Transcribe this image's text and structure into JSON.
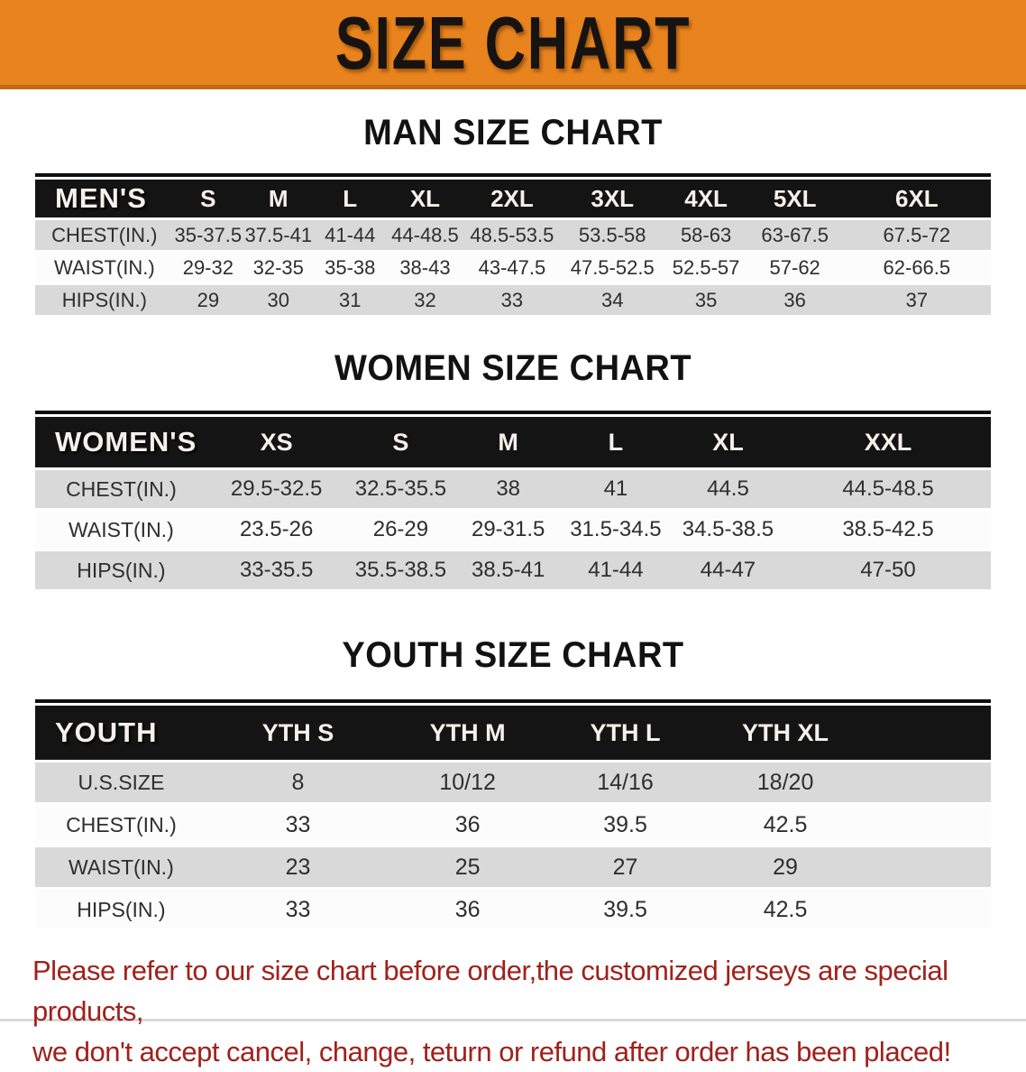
{
  "banner": {
    "title": "SIZE CHART",
    "bg_color": "#E8831E",
    "text_color": "#171310"
  },
  "tables": [
    {
      "heading": "MAN SIZE CHART",
      "corner_label": "MEN'S",
      "sizes": [
        "S",
        "M",
        "L",
        "XL",
        "2XL",
        "3XL",
        "4XL",
        "5XL",
        "6XL"
      ],
      "rows": [
        {
          "label": "CHEST(IN.)",
          "values": [
            "35-37.5",
            "37.5-41",
            "41-44",
            "44-48.5",
            "48.5-53.5",
            "53.5-58",
            "58-63",
            "63-67.5",
            "67.5-72"
          ]
        },
        {
          "label": "WAIST(IN.)",
          "values": [
            "29-32",
            "32-35",
            "35-38",
            "38-43",
            "43-47.5",
            "47.5-52.5",
            "52.5-57",
            "57-62",
            "62-66.5"
          ]
        },
        {
          "label": "HIPS(IN.)",
          "values": [
            "29",
            "30",
            "31",
            "32",
            "33",
            "34",
            "35",
            "36",
            "37"
          ]
        }
      ]
    },
    {
      "heading": "WOMEN SIZE CHART",
      "corner_label": "WOMEN'S",
      "sizes": [
        "XS",
        "S",
        "M",
        "L",
        "XL",
        "XXL"
      ],
      "rows": [
        {
          "label": "CHEST(IN.)",
          "values": [
            "29.5-32.5",
            "32.5-35.5",
            "38",
            "41",
            "44.5",
            "44.5-48.5"
          ]
        },
        {
          "label": "WAIST(IN.)",
          "values": [
            "23.5-26",
            "26-29",
            "29-31.5",
            "31.5-34.5",
            "34.5-38.5",
            "38.5-42.5"
          ]
        },
        {
          "label": "HIPS(IN.)",
          "values": [
            "33-35.5",
            "35.5-38.5",
            "38.5-41",
            "41-44",
            "44-47",
            "47-50"
          ]
        }
      ]
    },
    {
      "heading": "YOUTH SIZE CHART",
      "corner_label": "YOUTH",
      "sizes": [
        "YTH S",
        "YTH M",
        "YTH L",
        "YTH XL"
      ],
      "rows": [
        {
          "label": "U.S.SIZE",
          "values": [
            "8",
            "10/12",
            "14/16",
            "18/20"
          ]
        },
        {
          "label": "CHEST(IN.)",
          "values": [
            "33",
            "36",
            "39.5",
            "42.5"
          ]
        },
        {
          "label": "WAIST(IN.)",
          "values": [
            "23",
            "25",
            "27",
            "29"
          ]
        },
        {
          "label": "HIPS(IN.)",
          "values": [
            "33",
            "36",
            "39.5",
            "42.5"
          ]
        }
      ]
    }
  ],
  "disclaimer": {
    "color": "#A0211C",
    "lines": [
      "Please refer to our size chart before order,the customized jerseys are special products,",
      "we don't accept cancel, change, teturn or refund after order has been placed!"
    ]
  }
}
